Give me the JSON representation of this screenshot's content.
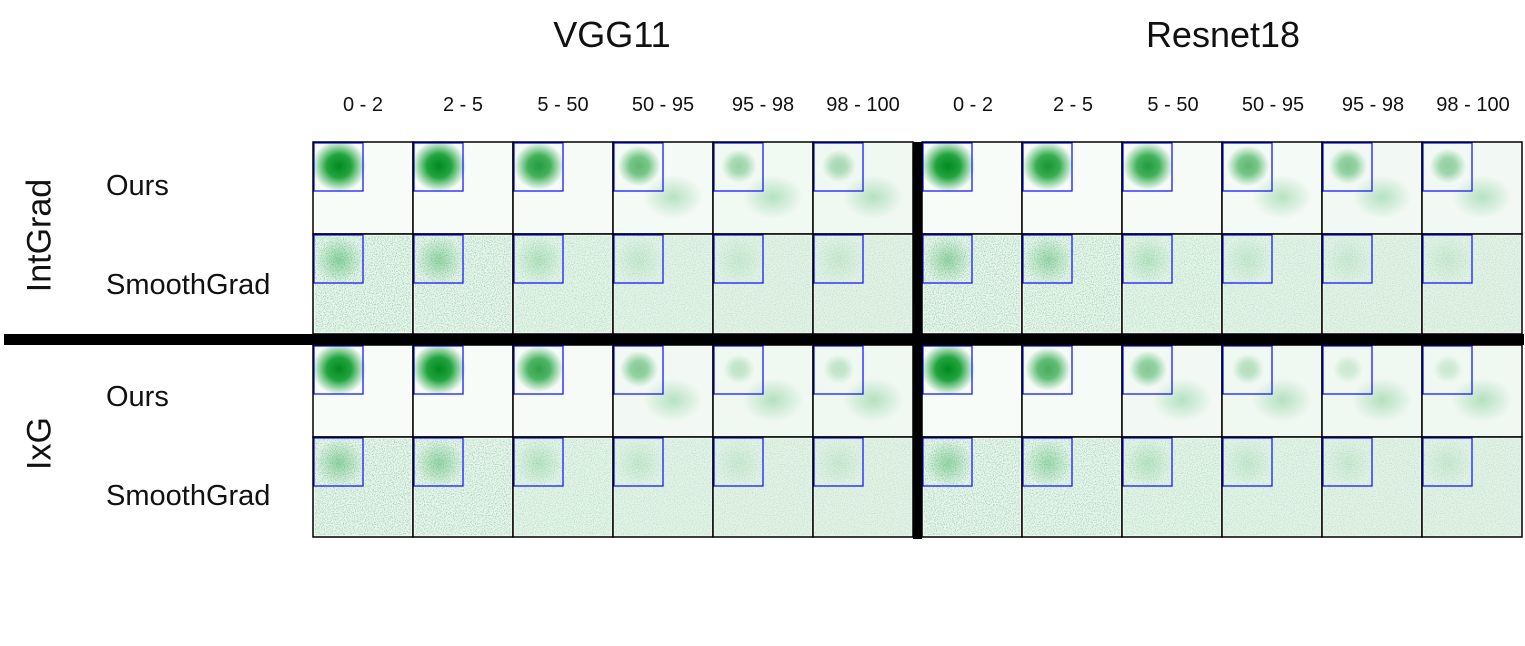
{
  "models": [
    {
      "name": "VGG11",
      "columns": [
        "0 - 2",
        "2 - 5",
        "5 - 50",
        "50 - 95",
        "95 - 98",
        "98 - 100"
      ]
    },
    {
      "name": "Resnet18",
      "columns": [
        "0 - 2",
        "2 - 5",
        "5 - 50",
        "50 - 95",
        "95 - 98",
        "98 - 100"
      ]
    }
  ],
  "methods": [
    {
      "name": "IntGrad",
      "rows": [
        "Ours",
        "SmoothGrad"
      ]
    },
    {
      "name": "IxG",
      "rows": [
        "Ours",
        "SmoothGrad"
      ]
    }
  ],
  "colors": {
    "heat": "#008a1e",
    "box": "#1a1aff",
    "border": "#000000"
  },
  "intensity": {
    "vgg": {
      "ours_intgrad": [
        1.0,
        1.0,
        0.85,
        0.6,
        0.35,
        0.3
      ],
      "smooth_intgrad": [
        0.95,
        0.85,
        0.5,
        0.3,
        0.25,
        0.25
      ],
      "ours_ixg": [
        1.0,
        1.0,
        0.8,
        0.45,
        0.2,
        0.2
      ],
      "smooth_ixg": [
        0.9,
        0.85,
        0.45,
        0.3,
        0.25,
        0.25
      ]
    },
    "resnet": {
      "ours_intgrad": [
        1.0,
        0.9,
        0.85,
        0.6,
        0.45,
        0.4
      ],
      "smooth_intgrad": [
        0.85,
        0.8,
        0.45,
        0.3,
        0.25,
        0.25
      ],
      "ours_ixg": [
        1.0,
        0.7,
        0.45,
        0.25,
        0.15,
        0.15
      ],
      "smooth_ixg": [
        0.85,
        0.75,
        0.45,
        0.3,
        0.25,
        0.25
      ]
    }
  }
}
